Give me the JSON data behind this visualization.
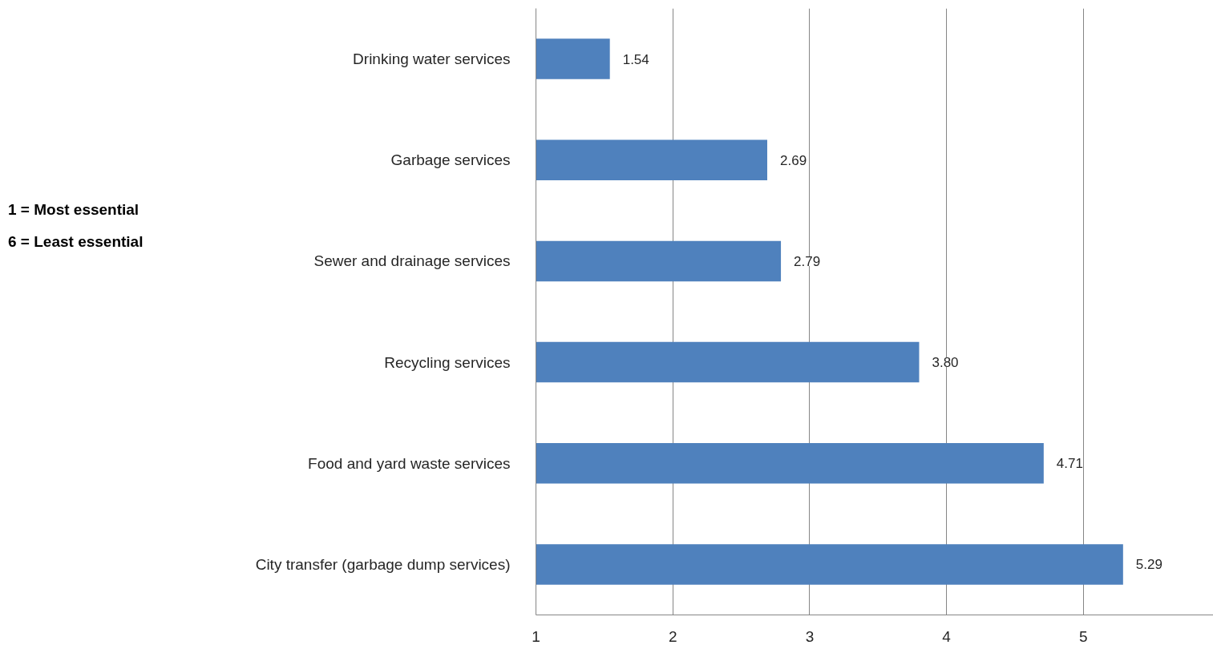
{
  "chart_data": {
    "type": "bar",
    "orientation": "horizontal",
    "categories": [
      "Drinking water services",
      "Garbage services",
      "Sewer and drainage services",
      "Recycling services",
      "Food and yard waste services",
      "City transfer (garbage dump services)"
    ],
    "values": [
      1.54,
      2.69,
      2.79,
      3.8,
      4.71,
      5.29
    ],
    "value_labels": [
      "1.54",
      "2.69",
      "2.79",
      "3.80",
      "4.71",
      "5.29"
    ],
    "color": "#4f81bd",
    "xlim": [
      1,
      5.95
    ],
    "xticks": [
      1,
      2,
      3,
      4,
      5
    ],
    "grid": "x",
    "annotations": [
      "1 = Most essential",
      "6 = Least essential"
    ]
  }
}
